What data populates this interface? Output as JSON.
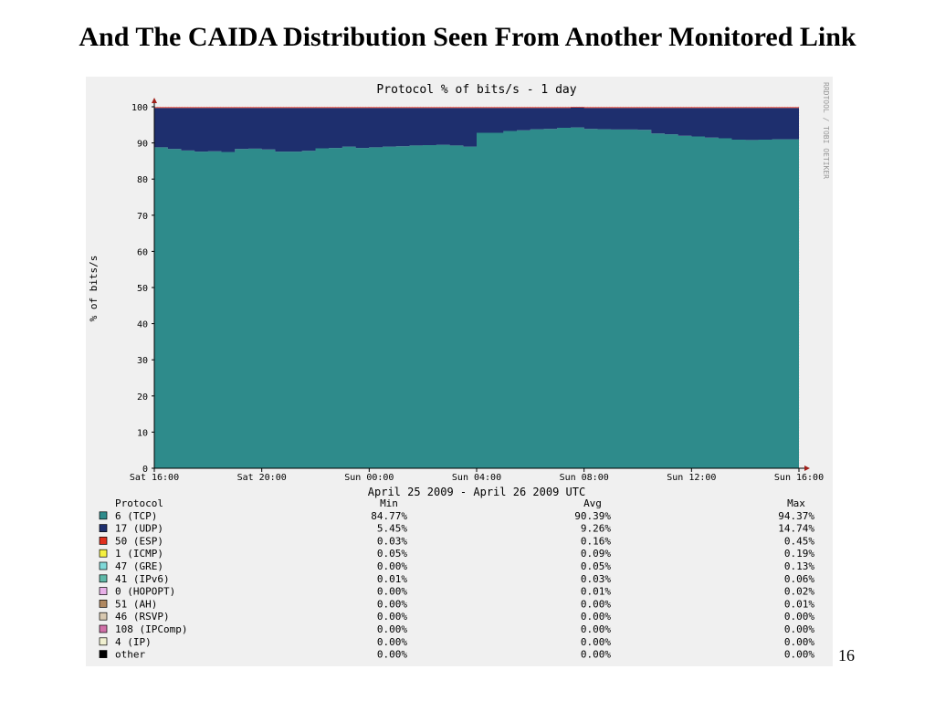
{
  "slide": {
    "title": "And The CAIDA Distribution Seen From Another Monitored Link",
    "page_number": "16"
  },
  "chart_data": {
    "type": "area",
    "stacked": true,
    "title": "Protocol % of bits/s - 1 day",
    "ylabel": "% of bits/s",
    "xlabel": "April 25 2009 - April 26 2009 UTC",
    "watermark": "RRDTOOL / TOBI OETIKER",
    "ylim": [
      0,
      100
    ],
    "yticks": [
      0,
      10,
      20,
      30,
      40,
      50,
      60,
      70,
      80,
      90,
      100
    ],
    "xlim_hours": [
      16,
      40
    ],
    "xticks": [
      {
        "hour": 16,
        "label": "Sat 16:00"
      },
      {
        "hour": 20,
        "label": "Sat 20:00"
      },
      {
        "hour": 24,
        "label": "Sun 00:00"
      },
      {
        "hour": 28,
        "label": "Sun 04:00"
      },
      {
        "hour": 32,
        "label": "Sun 08:00"
      },
      {
        "hour": 36,
        "label": "Sun 12:00"
      },
      {
        "hour": 40,
        "label": "Sun 16:00"
      }
    ],
    "grid": true,
    "series": [
      {
        "name": "6 (TCP)",
        "color": "#2e8b8b",
        "x": [
          16,
          16.5,
          17,
          17.5,
          18,
          18.5,
          19,
          19.5,
          20,
          20.5,
          21,
          21.5,
          22,
          22.5,
          23,
          23.5,
          24,
          24.5,
          25,
          25.5,
          26,
          26.5,
          27,
          27.5,
          28,
          28.5,
          29,
          29.5,
          30,
          30.5,
          31,
          31.5,
          32,
          32.5,
          33,
          33.5,
          34,
          34.5,
          35,
          35.5,
          36,
          36.5,
          37,
          37.5,
          38,
          38.5,
          39,
          39.5,
          40
        ],
        "values": [
          88.8,
          88.3,
          87.9,
          87.6,
          87.7,
          87.5,
          88.3,
          88.4,
          88.2,
          87.6,
          87.6,
          87.8,
          88.5,
          88.6,
          89.0,
          88.6,
          88.8,
          89.0,
          89.1,
          89.3,
          89.4,
          89.5,
          89.3,
          89.0,
          92.8,
          92.8,
          93.3,
          93.5,
          93.8,
          93.9,
          94.2,
          94.3,
          93.9,
          93.8,
          93.7,
          93.7,
          93.6,
          92.6,
          92.4,
          92.0,
          91.8,
          91.5,
          91.3,
          90.9,
          90.8,
          90.9,
          91.0,
          91.0,
          91.0
        ]
      },
      {
        "name": "17 (UDP)",
        "color": "#1e2f6e",
        "x": [
          16,
          16.5,
          17,
          17.5,
          18,
          18.5,
          19,
          19.5,
          20,
          20.5,
          21,
          21.5,
          22,
          22.5,
          23,
          23.5,
          24,
          24.5,
          25,
          25.5,
          26,
          26.5,
          27,
          27.5,
          28,
          28.5,
          29,
          29.5,
          30,
          30.5,
          31,
          31.5,
          32,
          32.5,
          33,
          33.5,
          34,
          34.5,
          35,
          35.5,
          36,
          36.5,
          37,
          37.5,
          38,
          38.5,
          39,
          39.5,
          40
        ],
        "values": [
          10.9,
          11.4,
          11.8,
          12.1,
          12.0,
          12.2,
          11.4,
          11.3,
          11.5,
          12.1,
          12.1,
          11.9,
          11.2,
          11.1,
          10.7,
          11.1,
          10.9,
          10.7,
          10.6,
          10.4,
          10.3,
          10.2,
          10.4,
          10.7,
          6.9,
          6.9,
          6.4,
          6.2,
          5.9,
          5.8,
          5.5,
          5.5,
          5.8,
          5.9,
          6.0,
          6.0,
          6.1,
          7.1,
          7.3,
          7.7,
          7.9,
          8.2,
          8.4,
          8.8,
          8.9,
          8.8,
          8.7,
          8.7,
          8.7
        ]
      },
      {
        "name": "50 (ESP)",
        "color": "#e0301e",
        "x": [
          16,
          16.5,
          17,
          17.5,
          18,
          18.5,
          19,
          19.5,
          20,
          20.5,
          21,
          21.5,
          22,
          22.5,
          23,
          23.5,
          24,
          24.5,
          25,
          25.5,
          26,
          26.5,
          27,
          27.5,
          28,
          28.5,
          29,
          29.5,
          30,
          30.5,
          31,
          31.5,
          32,
          32.5,
          33,
          33.5,
          34,
          34.5,
          35,
          35.5,
          36,
          36.5,
          37,
          37.5,
          38,
          38.5,
          39,
          39.5,
          40
        ],
        "values": [
          0.2,
          0.2,
          0.2,
          0.2,
          0.2,
          0.2,
          0.2,
          0.2,
          0.2,
          0.2,
          0.2,
          0.2,
          0.2,
          0.2,
          0.2,
          0.2,
          0.2,
          0.2,
          0.2,
          0.2,
          0.2,
          0.2,
          0.2,
          0.2,
          0.2,
          0.2,
          0.2,
          0.2,
          0.2,
          0.2,
          0.2,
          0.2,
          0.2,
          0.2,
          0.2,
          0.2,
          0.2,
          0.2,
          0.2,
          0.2,
          0.2,
          0.2,
          0.2,
          0.2,
          0.2,
          0.2,
          0.2,
          0.2,
          0.2
        ]
      }
    ],
    "legend": {
      "headers": {
        "protocol": "Protocol",
        "min": "Min",
        "avg": "Avg",
        "max": "Max"
      },
      "rows": [
        {
          "protocol": "6 (TCP)",
          "color": "#2e8b8b",
          "min": "84.77%",
          "avg": "90.39%",
          "max": "94.37%"
        },
        {
          "protocol": "17 (UDP)",
          "color": "#1e2f6e",
          "min": "5.45%",
          "avg": "9.26%",
          "max": "14.74%"
        },
        {
          "protocol": "50 (ESP)",
          "color": "#e0301e",
          "min": "0.03%",
          "avg": "0.16%",
          "max": "0.45%"
        },
        {
          "protocol": "1 (ICMP)",
          "color": "#f5f040",
          "min": "0.05%",
          "avg": "0.09%",
          "max": "0.19%"
        },
        {
          "protocol": "47 (GRE)",
          "color": "#7fd8d8",
          "min": "0.00%",
          "avg": "0.05%",
          "max": "0.13%"
        },
        {
          "protocol": "41 (IPv6)",
          "color": "#5fb8a8",
          "min": "0.01%",
          "avg": "0.03%",
          "max": "0.06%"
        },
        {
          "protocol": "0 (HOPOPT)",
          "color": "#e8b0e8",
          "min": "0.00%",
          "avg": "0.01%",
          "max": "0.02%"
        },
        {
          "protocol": "51 (AH)",
          "color": "#b08860",
          "min": "0.00%",
          "avg": "0.00%",
          "max": "0.01%"
        },
        {
          "protocol": "46 (RSVP)",
          "color": "#d8c8b0",
          "min": "0.00%",
          "avg": "0.00%",
          "max": "0.00%"
        },
        {
          "protocol": "108 (IPComp)",
          "color": "#d070a8",
          "min": "0.00%",
          "avg": "0.00%",
          "max": "0.00%"
        },
        {
          "protocol": "4 (IP)",
          "color": "#f0f0d0",
          "min": "0.00%",
          "avg": "0.00%",
          "max": "0.00%"
        },
        {
          "protocol": "other",
          "color": "#000000",
          "min": "0.00%",
          "avg": "0.00%",
          "max": "0.00%"
        }
      ]
    }
  }
}
